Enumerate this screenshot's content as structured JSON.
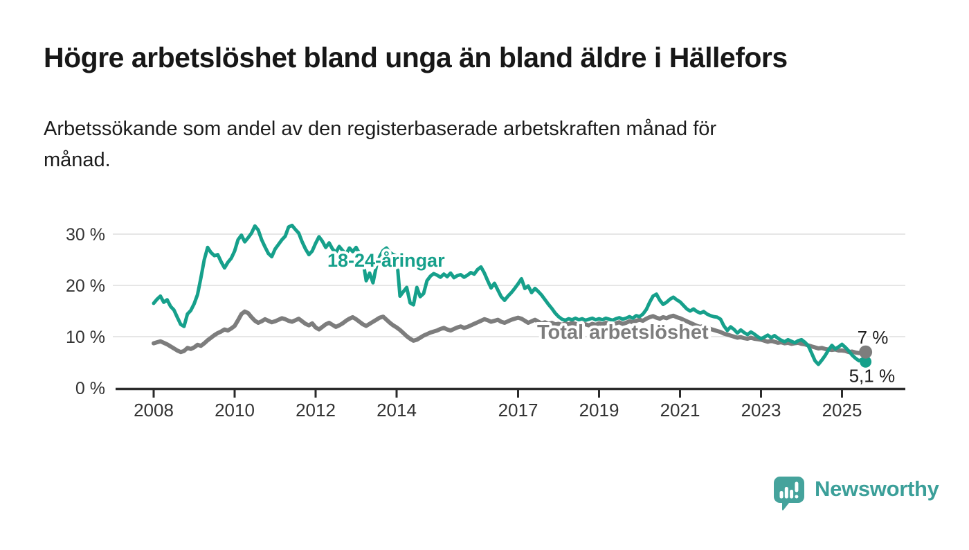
{
  "chart_data": {
    "type": "line",
    "title": "Högre arbetslöshet bland unga än bland äldre i Hällefors",
    "subtitle": "Arbetssökande som andel av den registerbaserade arbetskraften månad för månad.",
    "subtitle_lines": [
      "Arbetssökande som andel av den registerbaserade arbetskraften månad för",
      "månad."
    ],
    "unit": "%",
    "x_start": "2008-01",
    "x_end": "2025-08",
    "points_per_month": 1,
    "ylim": [
      0,
      32
    ],
    "yticks": [
      0,
      10,
      20,
      30
    ],
    "ytick_labels": [
      "0 %",
      "10 %",
      "20 %",
      "30 %"
    ],
    "xticks": [
      2008,
      2010,
      2012,
      2014,
      2017,
      2019,
      2021,
      2023,
      2025
    ],
    "xtick_labels": [
      "2008",
      "2010",
      "2012",
      "2014",
      "2017",
      "2019",
      "2021",
      "2023",
      "2025"
    ],
    "grid": true,
    "legend_position": "inline-labels",
    "style": {
      "grid_color": "#d8d8d8",
      "axis_color": "#2b2b2b",
      "axis_text_color": "#333333",
      "value_label_color": "#1c1c1c",
      "background": "#ffffff"
    },
    "series": [
      {
        "name": "18-24-åringar",
        "color": "#16a08b",
        "end_value": 5.1,
        "end_label": "5,1 %",
        "value_label_position": "below",
        "values": [
          16.5,
          17.3,
          17.9,
          16.7,
          17.2,
          15.9,
          15.2,
          13.8,
          12.4,
          12.0,
          14.4,
          15.1,
          16.4,
          18.2,
          21.5,
          25.0,
          27.4,
          26.4,
          25.8,
          26.0,
          24.6,
          23.4,
          24.5,
          25.3,
          26.7,
          28.9,
          29.8,
          28.5,
          29.3,
          30.2,
          31.6,
          30.8,
          28.9,
          27.5,
          26.2,
          25.6,
          27.1,
          28.0,
          28.9,
          29.6,
          31.4,
          31.7,
          30.9,
          30.2,
          28.5,
          27.1,
          26.0,
          26.7,
          28.2,
          29.5,
          28.6,
          27.4,
          28.3,
          27.1,
          26.4,
          27.6,
          26.8,
          26.1,
          27.3,
          26.6,
          27.4,
          26.2,
          24.9,
          20.9,
          22.4,
          20.5,
          23.8,
          25.6,
          26.8,
          27.3,
          26.4,
          26.0,
          25.7,
          17.9,
          18.8,
          19.6,
          16.6,
          16.2,
          19.6,
          17.8,
          18.4,
          20.9,
          21.8,
          22.3,
          22.0,
          21.6,
          22.2,
          21.7,
          22.4,
          21.5,
          21.9,
          22.1,
          21.6,
          22.0,
          22.5,
          22.2,
          23.1,
          23.6,
          22.4,
          20.9,
          19.5,
          20.4,
          19.1,
          17.8,
          17.1,
          17.9,
          18.6,
          19.4,
          20.3,
          21.3,
          19.4,
          19.9,
          18.6,
          19.4,
          18.8,
          18.1,
          17.2,
          16.3,
          15.5,
          14.6,
          13.9,
          13.4,
          13.2,
          13.5,
          13.3,
          13.6,
          13.3,
          13.5,
          13.2,
          13.4,
          13.6,
          13.3,
          13.5,
          13.3,
          13.6,
          13.4,
          13.2,
          13.5,
          13.7,
          13.4,
          13.6,
          13.9,
          13.6,
          14.1,
          13.9,
          14.4,
          15.3,
          16.7,
          17.9,
          18.3,
          17.1,
          16.3,
          16.7,
          17.3,
          17.7,
          17.2,
          16.8,
          16.1,
          15.4,
          15.0,
          15.4,
          14.9,
          14.6,
          14.9,
          14.4,
          14.1,
          13.9,
          13.8,
          13.4,
          12.1,
          11.2,
          11.9,
          11.4,
          10.7,
          11.3,
          10.8,
          10.4,
          10.9,
          10.5,
          10.0,
          9.6,
          9.9,
          10.3,
          9.8,
          10.2,
          9.7,
          9.3,
          9.0,
          9.4,
          9.1,
          8.8,
          9.2,
          9.4,
          8.9,
          8.2,
          6.8,
          5.3,
          4.6,
          5.4,
          6.3,
          7.4,
          8.3,
          7.6,
          8.0,
          8.5,
          7.9,
          7.2,
          6.4,
          5.8,
          5.3,
          5.6,
          5.1
        ]
      },
      {
        "name": "Total arbetslöshet",
        "color": "#7d7d7d",
        "end_value": 7.0,
        "end_label": "7 %",
        "value_label_position": "above",
        "values": [
          8.7,
          8.9,
          9.1,
          8.8,
          8.5,
          8.1,
          7.7,
          7.3,
          7.0,
          7.2,
          7.8,
          7.6,
          7.9,
          8.4,
          8.2,
          8.7,
          9.3,
          9.8,
          10.3,
          10.7,
          11.0,
          11.4,
          11.2,
          11.6,
          12.1,
          13.2,
          14.4,
          14.9,
          14.6,
          13.8,
          13.1,
          12.7,
          13.0,
          13.4,
          13.1,
          12.8,
          13.0,
          13.3,
          13.6,
          13.4,
          13.1,
          12.9,
          13.2,
          13.5,
          13.0,
          12.5,
          12.2,
          12.6,
          11.8,
          11.4,
          11.9,
          12.4,
          12.7,
          12.3,
          11.9,
          12.2,
          12.6,
          13.1,
          13.5,
          13.8,
          13.4,
          12.9,
          12.4,
          12.1,
          12.5,
          12.9,
          13.3,
          13.7,
          13.9,
          13.3,
          12.7,
          12.2,
          11.8,
          11.3,
          10.7,
          10.1,
          9.6,
          9.2,
          9.4,
          9.8,
          10.2,
          10.5,
          10.8,
          11.0,
          11.2,
          11.5,
          11.7,
          11.4,
          11.2,
          11.5,
          11.8,
          12.0,
          11.7,
          11.9,
          12.2,
          12.5,
          12.8,
          13.1,
          13.4,
          13.2,
          12.9,
          13.1,
          13.3,
          12.9,
          12.7,
          13.0,
          13.3,
          13.5,
          13.7,
          13.5,
          13.1,
          12.7,
          13.0,
          13.3,
          12.9,
          12.6,
          12.8,
          12.5,
          12.7,
          12.4,
          12.5,
          12.3,
          12.6,
          12.4,
          12.7,
          12.5,
          12.3,
          12.6,
          12.4,
          12.2,
          12.5,
          12.3,
          12.6,
          12.4,
          12.7,
          12.5,
          12.3,
          12.6,
          12.8,
          12.5,
          12.7,
          13.0,
          12.8,
          13.1,
          13.3,
          13.1,
          13.5,
          13.8,
          14.0,
          13.7,
          13.5,
          13.8,
          13.6,
          13.9,
          14.1,
          13.8,
          13.6,
          13.3,
          13.0,
          12.7,
          12.4,
          12.1,
          11.9,
          12.1,
          11.8,
          11.5,
          11.3,
          11.1,
          10.9,
          10.6,
          10.4,
          10.2,
          10.0,
          9.8,
          9.9,
          9.7,
          9.6,
          9.8,
          9.6,
          9.5,
          9.4,
          9.2,
          9.0,
          9.2,
          9.0,
          8.8,
          8.9,
          8.7,
          8.8,
          8.6,
          8.7,
          8.8,
          8.6,
          8.5,
          8.3,
          8.1,
          7.9,
          7.7,
          7.8,
          7.6,
          7.5,
          7.4,
          7.5,
          7.3,
          7.3,
          7.2,
          7.0,
          7.1,
          6.9,
          6.8,
          6.9,
          7.0
        ]
      }
    ]
  },
  "footer": {
    "brand": "Newsworthy",
    "brand_color": "#3b9f99",
    "logo_color": "#45a39c"
  }
}
